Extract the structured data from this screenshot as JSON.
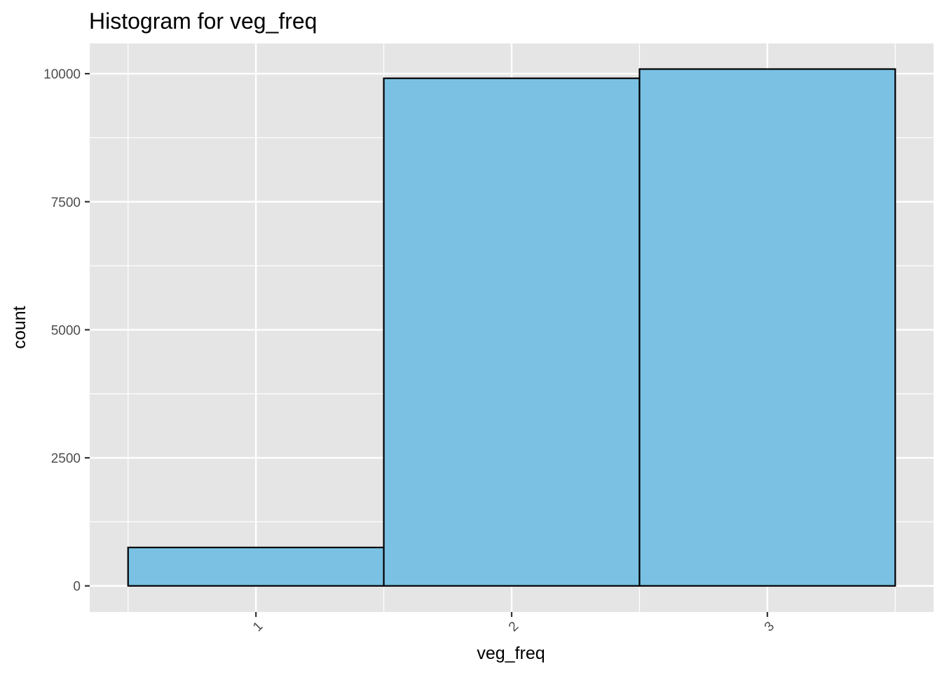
{
  "chart_data": {
    "type": "bar",
    "title": "Histogram for veg_freq",
    "xlabel": "veg_freq",
    "ylabel": "count",
    "categories": [
      "1",
      "2",
      "3"
    ],
    "values": [
      750,
      9910,
      10090
    ],
    "ylim": [
      -510,
      10590
    ],
    "yticks": [
      0,
      2500,
      5000,
      7500,
      10000
    ],
    "ytick_labels": [
      "0",
      "2500",
      "5000",
      "7500",
      "10000"
    ],
    "grid": true,
    "colors": {
      "panel_background": "#e5e5e5",
      "grid": "#ffffff",
      "bar_fill": "#7ac1e3",
      "bar_outline": "#000000"
    }
  }
}
